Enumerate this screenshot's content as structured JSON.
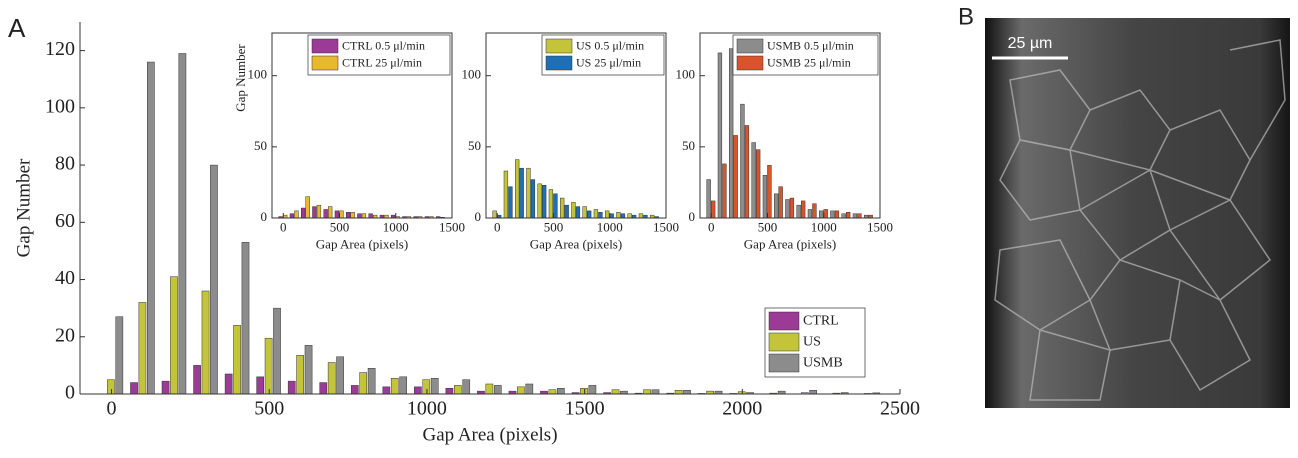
{
  "panel_labels": {
    "a": "A",
    "b": "B"
  },
  "micrograph": {
    "scale_bar": "25 µm"
  },
  "chart_data": [
    {
      "type": "bar",
      "xlabel": "Gap Area (pixels)",
      "ylabel": "Gap Number",
      "x": [
        0,
        100,
        200,
        300,
        400,
        500,
        600,
        700,
        800,
        900,
        1000,
        1100,
        1200,
        1300,
        1400,
        1500,
        1600,
        1700,
        1800,
        1900,
        2000,
        2100,
        2200,
        2300,
        2400
      ],
      "xlim": [
        -100,
        2500
      ],
      "xticks": [
        0,
        500,
        1000,
        1500,
        2000,
        2500
      ],
      "ylim": [
        0,
        130
      ],
      "yticks": [
        0,
        20,
        40,
        60,
        80,
        100,
        120
      ],
      "legend": "right",
      "series": [
        {
          "name": "CTRL",
          "color": "#9b3b96",
          "values": [
            0,
            4,
            4.5,
            10,
            7,
            6,
            4.5,
            4,
            3,
            2.5,
            2.5,
            2,
            1,
            1,
            1,
            0.5,
            0.5,
            0.3,
            0.3,
            0.2,
            0.2,
            0,
            0,
            0,
            0
          ]
        },
        {
          "name": "US",
          "color": "#c4c43a",
          "values": [
            5,
            32,
            41,
            36,
            24,
            19.5,
            13.5,
            11,
            7.5,
            5.5,
            5,
            3,
            3.5,
            2.5,
            1.5,
            2,
            1.5,
            1.5,
            1.3,
            1,
            0.8,
            0.3,
            0.5,
            0.3,
            0.2
          ]
        },
        {
          "name": "USMB",
          "color": "#8c8c8c",
          "values": [
            27,
            116,
            119,
            80,
            53,
            30,
            17,
            13,
            9,
            6,
            5.5,
            5,
            3,
            3.5,
            2,
            3,
            1,
            1.5,
            1.3,
            1,
            0.5,
            1,
            1.3,
            0.5,
            0.4
          ]
        }
      ]
    },
    {
      "type": "bar",
      "xlabel": "Gap Area (pixels)",
      "ylabel": "Gap Number",
      "x": [
        0,
        100,
        200,
        300,
        400,
        500,
        600,
        700,
        800,
        900,
        1000,
        1100,
        1200,
        1300,
        1400
      ],
      "xlim": [
        -100,
        1500
      ],
      "xticks": [
        0,
        500,
        1000,
        1500
      ],
      "ylim": [
        0,
        130
      ],
      "yticks": [
        0,
        50,
        100
      ],
      "legend": "upper right",
      "series": [
        {
          "name": "CTRL 0.5 μl/min",
          "color": "#9b3b96",
          "values": [
            1,
            3,
            7,
            8,
            6,
            5,
            4,
            3,
            3,
            2,
            2,
            1,
            1,
            1,
            1
          ]
        },
        {
          "name": "CTRL 25 μl/min",
          "color": "#e8b830",
          "values": [
            2,
            5,
            15,
            9,
            8,
            5,
            4,
            3,
            2,
            2,
            1,
            1,
            1,
            1,
            0.5
          ]
        }
      ]
    },
    {
      "type": "bar",
      "xlabel": "Gap Area (pixels)",
      "x": [
        0,
        100,
        200,
        300,
        400,
        500,
        600,
        700,
        800,
        900,
        1000,
        1100,
        1200,
        1300,
        1400
      ],
      "xlim": [
        -100,
        1500
      ],
      "xticks": [
        0,
        500,
        1000,
        1500
      ],
      "ylim": [
        0,
        130
      ],
      "yticks": [
        0,
        50,
        100
      ],
      "legend": "upper right",
      "series": [
        {
          "name": "US 0.5 μl/min",
          "color": "#c4c43a",
          "values": [
            5,
            33,
            41,
            35,
            24,
            20,
            14,
            11,
            8,
            6,
            5,
            4,
            3,
            3,
            2
          ]
        },
        {
          "name": "US 25 μl/min",
          "color": "#1f6fb5",
          "values": [
            2,
            22,
            35,
            27,
            23,
            17,
            9,
            8,
            5,
            4,
            3,
            3,
            2,
            2,
            1
          ]
        }
      ]
    },
    {
      "type": "bar",
      "xlabel": "Gap Area (pixels)",
      "x": [
        0,
        100,
        200,
        300,
        400,
        500,
        600,
        700,
        800,
        900,
        1000,
        1100,
        1200,
        1300,
        1400
      ],
      "xlim": [
        -100,
        1500
      ],
      "xticks": [
        0,
        500,
        1000,
        1500
      ],
      "ylim": [
        0,
        130
      ],
      "yticks": [
        0,
        50,
        100
      ],
      "legend": "upper right",
      "series": [
        {
          "name": "USMB 0.5 μl/min",
          "color": "#8c8c8c",
          "values": [
            27,
            116,
            119,
            80,
            53,
            30,
            17,
            13,
            9,
            6,
            5,
            5,
            3,
            3,
            2
          ]
        },
        {
          "name": "USMB 25 μl/min",
          "color": "#d9532b",
          "values": [
            12,
            38,
            58,
            65,
            48,
            37,
            22,
            14,
            12,
            10,
            6,
            5,
            4,
            3,
            2
          ]
        }
      ]
    }
  ]
}
